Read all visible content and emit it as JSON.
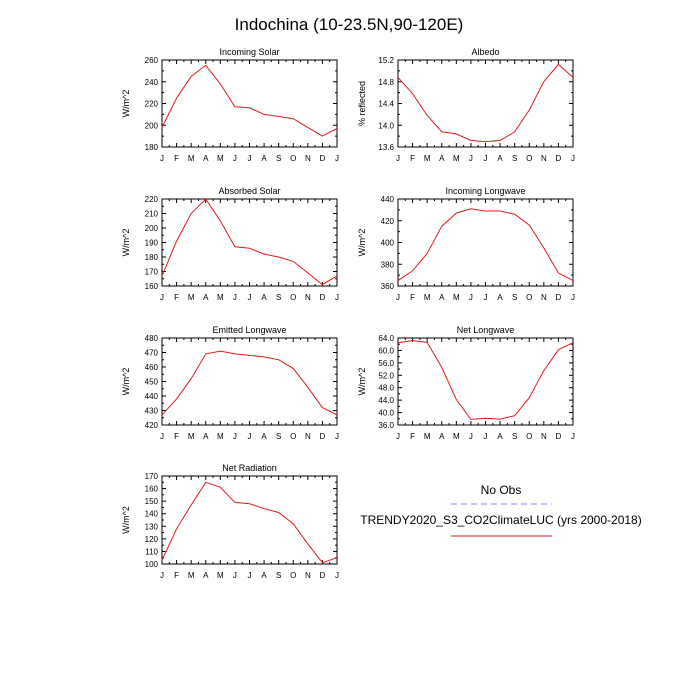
{
  "figure": {
    "title": "Indochina (10-23.5N,90-120E)"
  },
  "legend": {
    "entries": [
      {
        "name": "No Obs",
        "color": "#8080ff",
        "dash": "dashed"
      },
      {
        "name": "TRENDY2020_S3_CO2ClimateLUC (yrs 2000-2018)",
        "color": "#e31a1c",
        "dash": "solid"
      }
    ]
  },
  "chart_data": [
    {
      "type": "line",
      "title": "Incoming Solar",
      "ylabel": "W/m^2",
      "x": [
        "J",
        "F",
        "M",
        "A",
        "M",
        "J",
        "J",
        "A",
        "S",
        "O",
        "N",
        "D",
        "J"
      ],
      "ylim": [
        180,
        260
      ],
      "yticks": [
        "180",
        "200",
        "220",
        "240",
        "260"
      ],
      "series": [
        {
          "values": [
            198,
            225,
            245,
            255,
            238,
            217,
            216,
            210,
            208,
            206,
            198,
            190,
            197
          ]
        }
      ]
    },
    {
      "type": "line",
      "title": "Albedo",
      "ylabel": "% reflected",
      "x": [
        "J",
        "F",
        "M",
        "A",
        "M",
        "J",
        "J",
        "A",
        "S",
        "O",
        "N",
        "D",
        "J"
      ],
      "ylim": [
        13.6,
        15.2
      ],
      "yticks": [
        "13.6",
        "14.0",
        "14.4",
        "14.8",
        "15.2"
      ],
      "series": [
        {
          "values": [
            14.88,
            14.58,
            14.18,
            13.88,
            13.84,
            13.72,
            13.7,
            13.72,
            13.88,
            14.28,
            14.8,
            15.12,
            14.88
          ]
        }
      ]
    },
    {
      "type": "line",
      "title": "Absorbed Solar",
      "ylabel": "W/m^2",
      "x": [
        "J",
        "F",
        "M",
        "A",
        "M",
        "J",
        "J",
        "A",
        "S",
        "O",
        "N",
        "D",
        "J"
      ],
      "ylim": [
        160,
        220
      ],
      "yticks": [
        "160",
        "170",
        "180",
        "190",
        "200",
        "210",
        "220"
      ],
      "series": [
        {
          "values": [
            167,
            191,
            210,
            220,
            205,
            187,
            186,
            182,
            180,
            177,
            169,
            161,
            167
          ]
        }
      ]
    },
    {
      "type": "line",
      "title": "Incoming Longwave",
      "ylabel": "W/m^2",
      "x": [
        "J",
        "F",
        "M",
        "A",
        "M",
        "J",
        "J",
        "A",
        "S",
        "O",
        "N",
        "D",
        "J"
      ],
      "ylim": [
        360,
        440
      ],
      "yticks": [
        "360",
        "380",
        "400",
        "420",
        "440"
      ],
      "series": [
        {
          "values": [
            365,
            374,
            390,
            415,
            427,
            431,
            429,
            429,
            426,
            416,
            395,
            372,
            365
          ]
        }
      ]
    },
    {
      "type": "line",
      "title": "Emitted Longwave",
      "ylabel": "W/m^2",
      "x": [
        "J",
        "F",
        "M",
        "A",
        "M",
        "J",
        "J",
        "A",
        "S",
        "O",
        "N",
        "D",
        "J"
      ],
      "ylim": [
        420,
        480
      ],
      "yticks": [
        "420",
        "430",
        "440",
        "450",
        "460",
        "470",
        "480"
      ],
      "series": [
        {
          "values": [
            427,
            438,
            452,
            469,
            471,
            469,
            468,
            467,
            465,
            459,
            446,
            432,
            427
          ]
        }
      ]
    },
    {
      "type": "line",
      "title": "Net Longwave",
      "ylabel": "W/m^2",
      "x": [
        "J",
        "F",
        "M",
        "A",
        "M",
        "J",
        "J",
        "A",
        "S",
        "O",
        "N",
        "D",
        "J"
      ],
      "ylim": [
        36,
        64
      ],
      "yticks": [
        "36.0",
        "40.0",
        "44.0",
        "48.0",
        "52.0",
        "56.0",
        "60.0",
        "64.0"
      ],
      "series": [
        {
          "values": [
            62.5,
            63.2,
            62.6,
            54.5,
            44.2,
            37.8,
            38.2,
            37.9,
            39.0,
            44.8,
            53.5,
            60.2,
            62.5
          ]
        }
      ]
    },
    {
      "type": "line",
      "title": "Net Radiation",
      "ylabel": "W/m^2",
      "x": [
        "J",
        "F",
        "M",
        "A",
        "M",
        "J",
        "J",
        "A",
        "S",
        "O",
        "N",
        "D",
        "J"
      ],
      "ylim": [
        100,
        170
      ],
      "yticks": [
        "100",
        "110",
        "120",
        "130",
        "140",
        "150",
        "160",
        "170"
      ],
      "series": [
        {
          "values": [
            103,
            128,
            147,
            165,
            161,
            149,
            148,
            144,
            141,
            132,
            116,
            101,
            105
          ]
        }
      ]
    }
  ]
}
